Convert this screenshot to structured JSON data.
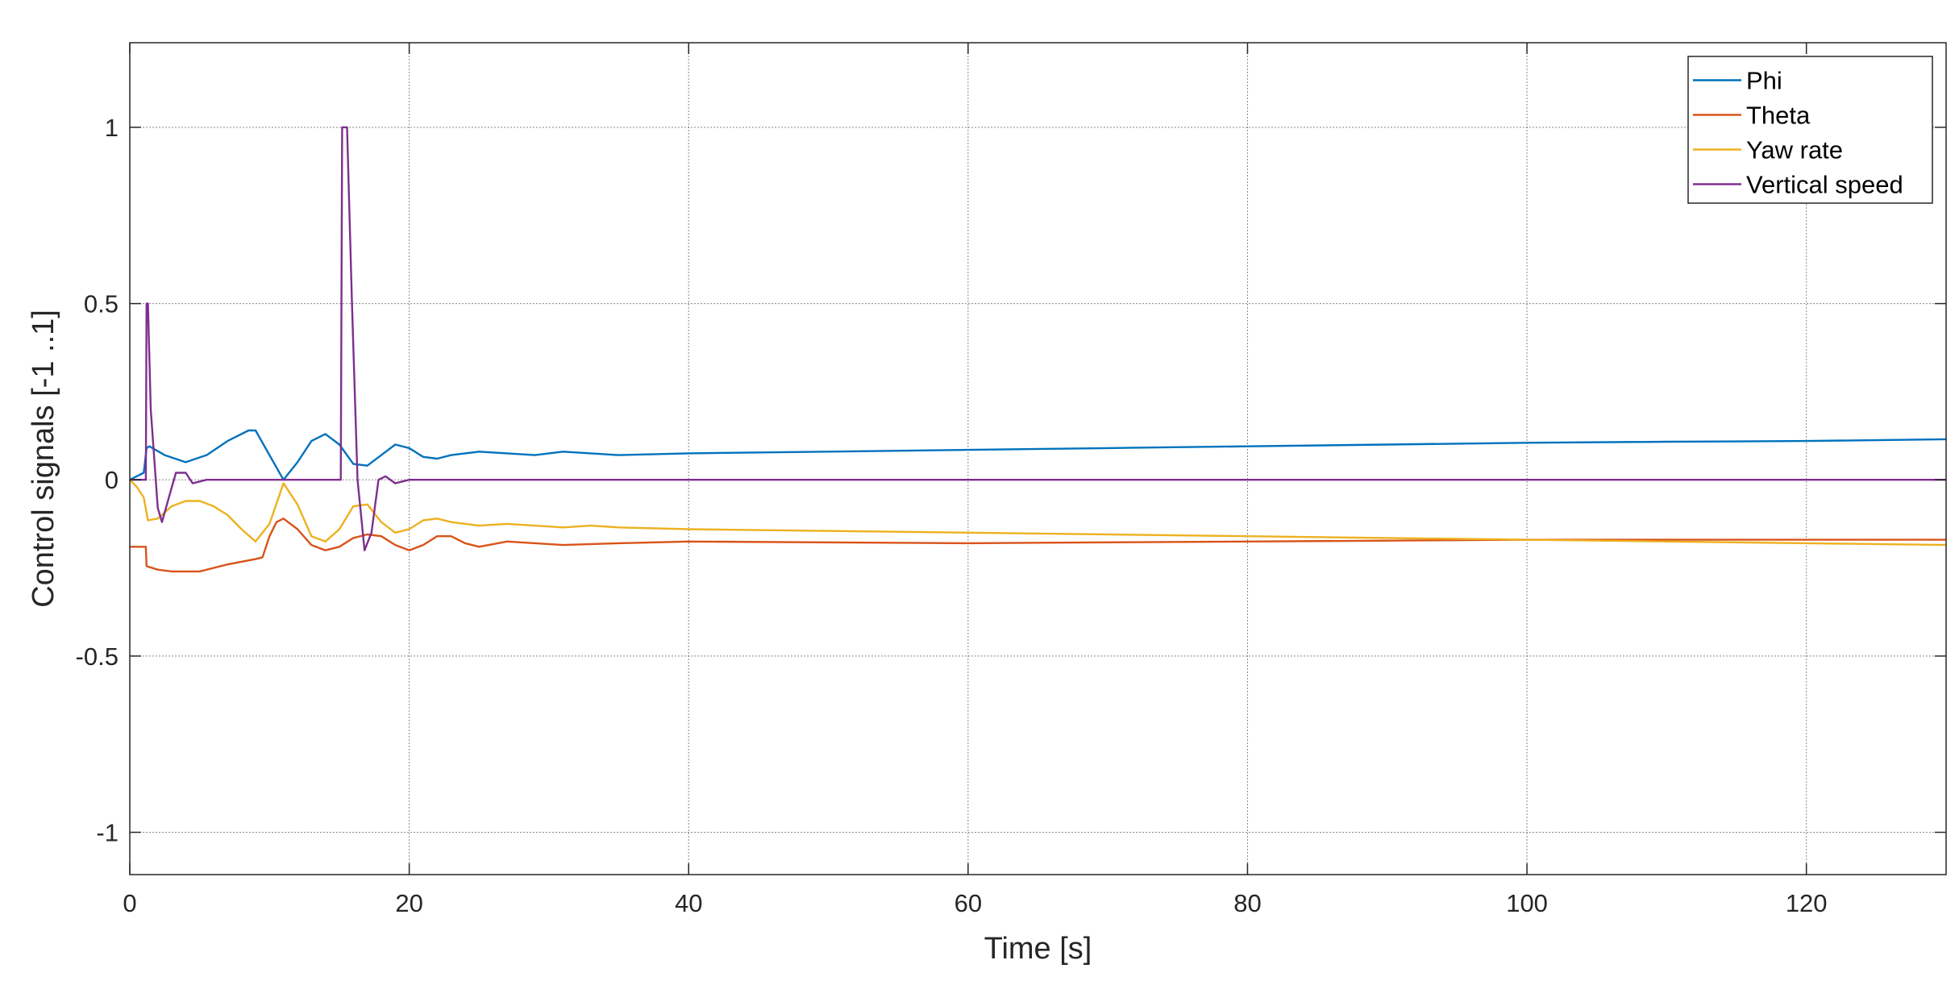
{
  "chart_data": {
    "type": "line",
    "title": "",
    "xlabel": "Time [s]",
    "ylabel": "Control signals [-1 ..1]",
    "xlim": [
      0,
      130
    ],
    "ylim": [
      -1.12,
      1.24
    ],
    "xticks": [
      0,
      20,
      40,
      60,
      80,
      100,
      120
    ],
    "yticks": [
      -1,
      -0.5,
      0,
      0.5,
      1
    ],
    "xtick_labels": [
      "0",
      "20",
      "40",
      "60",
      "80",
      "100",
      "120"
    ],
    "ytick_labels": [
      "-1",
      "-0.5",
      "0",
      "0.5",
      "1"
    ],
    "grid": true,
    "legend_position": "top-right",
    "series": [
      {
        "name": "Phi",
        "color": "#0072BD",
        "x": [
          0,
          1,
          1.2,
          1.4,
          2.5,
          4,
          5.5,
          7,
          8.5,
          9,
          10,
          11,
          12,
          13,
          14,
          15,
          16,
          17,
          18,
          19,
          20,
          21,
          22,
          23,
          25,
          27,
          29,
          31,
          33,
          35,
          40,
          50,
          60,
          70,
          80,
          90,
          100,
          110,
          120,
          130
        ],
        "y": [
          0,
          0.02,
          0.09,
          0.095,
          0.07,
          0.05,
          0.07,
          0.11,
          0.14,
          0.14,
          0.07,
          0.0,
          0.05,
          0.11,
          0.13,
          0.1,
          0.045,
          0.04,
          0.07,
          0.1,
          0.09,
          0.065,
          0.06,
          0.07,
          0.08,
          0.075,
          0.07,
          0.08,
          0.075,
          0.07,
          0.075,
          0.08,
          0.085,
          0.09,
          0.095,
          0.1,
          0.105,
          0.108,
          0.11,
          0.115
        ]
      },
      {
        "name": "Theta",
        "color": "#D95319",
        "x": [
          0,
          1.15,
          1.2,
          2,
          3,
          5,
          7,
          9,
          9.5,
          10,
          10.5,
          11,
          12,
          13,
          14,
          15,
          16,
          17,
          18,
          19,
          20,
          21,
          22,
          23,
          24,
          25,
          27,
          29,
          31,
          35,
          40,
          60,
          80,
          100,
          120,
          130
        ],
        "y": [
          -0.19,
          -0.19,
          -0.245,
          -0.255,
          -0.26,
          -0.26,
          -0.24,
          -0.225,
          -0.22,
          -0.16,
          -0.12,
          -0.11,
          -0.14,
          -0.185,
          -0.2,
          -0.19,
          -0.165,
          -0.155,
          -0.16,
          -0.185,
          -0.2,
          -0.185,
          -0.16,
          -0.16,
          -0.18,
          -0.19,
          -0.175,
          -0.18,
          -0.185,
          -0.18,
          -0.175,
          -0.18,
          -0.175,
          -0.17,
          -0.17,
          -0.17
        ]
      },
      {
        "name": "Yaw rate",
        "color": "#EDB120",
        "x": [
          0,
          0.5,
          1,
          1.3,
          2,
          3,
          4,
          5,
          6,
          7,
          8,
          9,
          10,
          11,
          12,
          13,
          14,
          15,
          16,
          17,
          18,
          19,
          20,
          21,
          22,
          23,
          25,
          27,
          29,
          31,
          33,
          35,
          40,
          60,
          80,
          100,
          120,
          130
        ],
        "y": [
          0,
          -0.02,
          -0.05,
          -0.115,
          -0.11,
          -0.075,
          -0.06,
          -0.06,
          -0.075,
          -0.1,
          -0.14,
          -0.175,
          -0.125,
          -0.01,
          -0.07,
          -0.16,
          -0.175,
          -0.14,
          -0.075,
          -0.07,
          -0.12,
          -0.15,
          -0.14,
          -0.115,
          -0.11,
          -0.12,
          -0.13,
          -0.125,
          -0.13,
          -0.135,
          -0.13,
          -0.135,
          -0.14,
          -0.15,
          -0.16,
          -0.17,
          -0.18,
          -0.185
        ]
      },
      {
        "name": "Vertical speed",
        "color": "#7E2F8E",
        "x": [
          0,
          1.15,
          1.2,
          1.3,
          1.5,
          2,
          2.3,
          2.8,
          3.3,
          4,
          4.5,
          5.5,
          14.8,
          15.1,
          15.2,
          15.55,
          15.9,
          16.3,
          16.8,
          17.3,
          17.8,
          18.3,
          19,
          20,
          40,
          60,
          80,
          100,
          120,
          130
        ],
        "y": [
          0,
          0,
          0.5,
          0.5,
          0.2,
          -0.08,
          -0.12,
          -0.05,
          0.02,
          0.02,
          -0.01,
          0,
          0,
          0,
          1,
          1,
          0.5,
          0,
          -0.2,
          -0.15,
          0.0,
          0.01,
          -0.01,
          0,
          0,
          0,
          0,
          0,
          0,
          0
        ]
      }
    ]
  }
}
